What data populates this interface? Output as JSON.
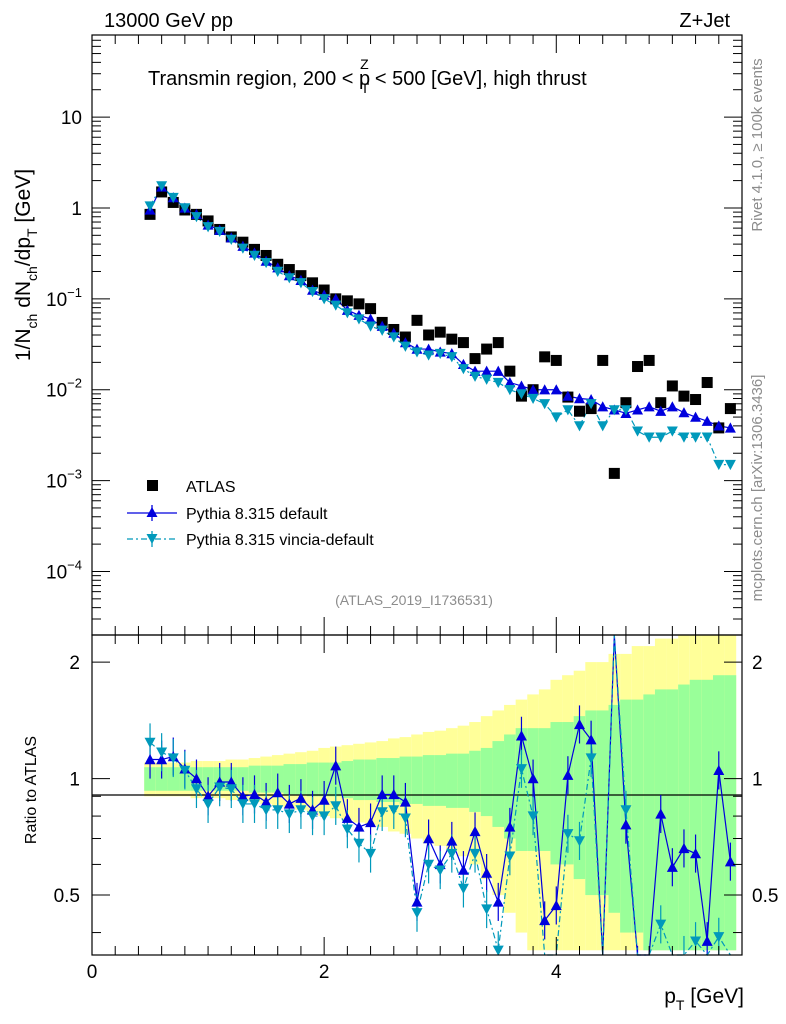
{
  "header": {
    "left": "13000 GeV pp",
    "right": "Z+Jet"
  },
  "side_labels": {
    "rivet": "Rivet 4.1.0, ≥ 100k events",
    "mcplots": "mcplots.cern.ch [arXiv:1306.3436]"
  },
  "analysis_id": "(ATLAS_2019_I1736531)",
  "title": {
    "pre": "Transmin region, 200 < p",
    "sub": "T",
    "sup": "Z",
    "post": " < 500 [GeV], high thrust"
  },
  "ylabel_main": {
    "t1": "1/N",
    "s1": "ch",
    "t2": " dN",
    "s2": "ch",
    "t3": "/dp",
    "s3": "T",
    "t4": " [GeV]"
  },
  "ylabel_ratio": "Ratio to ATLAS",
  "xlabel": {
    "t1": "p",
    "s1": "T",
    "t2": " [GeV]"
  },
  "legend": [
    {
      "label": "ATLAS",
      "color": "#000000",
      "marker": "square"
    },
    {
      "label": "Pythia 8.315 default",
      "color": "#0000dd",
      "marker": "triangle-up"
    },
    {
      "label": "Pythia 8.315 vincia-default",
      "color": "#0099bb",
      "marker": "triangle-down"
    }
  ],
  "x_ticks": [
    "0",
    "2",
    "4"
  ],
  "y_ticks_main": [
    {
      "mant": "10",
      "exp": ""
    },
    {
      "mant": "1",
      "exp": ""
    },
    {
      "mant": "10",
      "exp": "−1"
    },
    {
      "mant": "10",
      "exp": "−2"
    },
    {
      "mant": "10",
      "exp": "−3"
    },
    {
      "mant": "10",
      "exp": "−4"
    }
  ],
  "y_ticks_ratio": [
    "2",
    "1",
    "0.5"
  ],
  "chart_data": {
    "type": "scatter",
    "title": "Transmin region, 200 < pT^Z < 500 [GeV], high thrust",
    "xlabel": "pT [GeV]",
    "ylabel": "1/Nch dNch/dpT [GeV]",
    "xlim": [
      0,
      5.6
    ],
    "ylim_main": [
      2e-05,
      80
    ],
    "ylim_ratio": [
      0.35,
      2.35
    ],
    "x": [
      0.5,
      0.6,
      0.7,
      0.8,
      0.9,
      1.0,
      1.1,
      1.2,
      1.3,
      1.4,
      1.5,
      1.6,
      1.7,
      1.8,
      1.9,
      2.0,
      2.1,
      2.2,
      2.3,
      2.4,
      2.5,
      2.6,
      2.7,
      2.8,
      2.9,
      3.0,
      3.1,
      3.2,
      3.3,
      3.4,
      3.5,
      3.6,
      3.7,
      3.8,
      3.9,
      4.0,
      4.1,
      4.2,
      4.3,
      4.4,
      4.5,
      4.6,
      4.7,
      4.8,
      4.9,
      5.0,
      5.1,
      5.2,
      5.3,
      5.4,
      5.5
    ],
    "series": [
      {
        "name": "ATLAS",
        "values": [
          0.85,
          1.5,
          1.15,
          0.95,
          0.85,
          0.72,
          0.58,
          0.48,
          0.42,
          0.35,
          0.3,
          0.24,
          0.21,
          0.18,
          0.15,
          0.125,
          0.1,
          0.095,
          0.088,
          0.078,
          0.055,
          0.046,
          0.038,
          0.058,
          0.04,
          0.043,
          0.036,
          0.033,
          0.022,
          0.028,
          0.033,
          0.016,
          0.0085,
          0.01,
          0.023,
          0.021,
          0.0083,
          0.0058,
          0.0062,
          0.021,
          0.0012,
          0.0072,
          0.018,
          0.021,
          0.0072,
          0.011,
          0.0085,
          0.0078,
          0.012,
          0.0038,
          0.0062
        ],
        "ratio_band_inner": [
          0.07,
          0.07,
          0.07,
          0.07,
          0.07,
          0.07,
          0.07,
          0.07,
          0.07,
          0.08,
          0.08,
          0.08,
          0.09,
          0.09,
          0.1,
          0.1,
          0.1,
          0.11,
          0.12,
          0.12,
          0.13,
          0.13,
          0.14,
          0.14,
          0.15,
          0.15,
          0.16,
          0.16,
          0.18,
          0.2,
          0.25,
          0.3,
          0.35,
          0.35,
          0.35,
          0.4,
          0.4,
          0.45,
          0.5,
          0.5,
          0.55,
          0.6,
          0.6,
          0.65,
          0.7,
          0.7,
          0.75,
          0.8,
          0.8,
          0.85,
          0.85
        ],
        "ratio_band_outer": [
          0.1,
          0.1,
          0.1,
          0.1,
          0.11,
          0.11,
          0.11,
          0.12,
          0.12,
          0.13,
          0.14,
          0.15,
          0.16,
          0.17,
          0.18,
          0.2,
          0.21,
          0.22,
          0.23,
          0.24,
          0.25,
          0.27,
          0.28,
          0.3,
          0.32,
          0.33,
          0.35,
          0.37,
          0.4,
          0.45,
          0.5,
          0.55,
          0.6,
          0.65,
          0.7,
          0.8,
          0.85,
          0.9,
          1.0,
          1.0,
          1.1,
          1.1,
          1.2,
          1.2,
          1.3,
          1.3,
          1.4,
          1.4,
          1.5,
          1.5,
          1.5
        ]
      },
      {
        "name": "Pythia 8.315 default",
        "values": [
          0.95,
          1.7,
          1.3,
          1.0,
          0.85,
          0.65,
          0.57,
          0.47,
          0.38,
          0.32,
          0.26,
          0.22,
          0.18,
          0.16,
          0.125,
          0.11,
          0.1,
          0.075,
          0.066,
          0.06,
          0.05,
          0.042,
          0.033,
          0.028,
          0.028,
          0.026,
          0.025,
          0.019,
          0.016,
          0.016,
          0.016,
          0.012,
          0.011,
          0.01,
          0.01,
          0.01,
          0.0085,
          0.008,
          0.0078,
          0.0065,
          0.006,
          0.0055,
          0.006,
          0.0065,
          0.0058,
          0.0065,
          0.0056,
          0.005,
          0.0045,
          0.004,
          0.0038
        ],
        "ratio": [
          1.12,
          1.12,
          1.14,
          1.06,
          1.0,
          0.9,
          0.98,
          0.98,
          0.9,
          0.91,
          0.87,
          0.92,
          0.86,
          0.89,
          0.83,
          0.88,
          1.08,
          0.79,
          0.75,
          0.77,
          0.91,
          0.91,
          0.87,
          0.48,
          0.7,
          0.6,
          0.69,
          0.58,
          0.73,
          0.57,
          0.48,
          0.75,
          1.29,
          1.0,
          0.43,
          0.47,
          1.02,
          1.38,
          1.26,
          0.31,
          5.0,
          0.76,
          0.33,
          0.31,
          0.81,
          0.59,
          0.66,
          0.64,
          0.38,
          1.05,
          0.61
        ]
      },
      {
        "name": "Pythia 8.315 vincia-default",
        "values": [
          1.05,
          1.75,
          1.3,
          1.0,
          0.8,
          0.62,
          0.55,
          0.45,
          0.36,
          0.3,
          0.25,
          0.2,
          0.17,
          0.15,
          0.12,
          0.1,
          0.085,
          0.07,
          0.06,
          0.05,
          0.045,
          0.038,
          0.03,
          0.026,
          0.024,
          0.025,
          0.023,
          0.017,
          0.014,
          0.013,
          0.012,
          0.01,
          0.009,
          0.008,
          0.007,
          0.005,
          0.006,
          0.004,
          0.007,
          0.004,
          0.006,
          0.006,
          0.0035,
          0.003,
          0.003,
          0.0035,
          0.003,
          0.003,
          0.003,
          0.0015,
          0.0015
        ],
        "ratio": [
          1.24,
          1.17,
          1.13,
          1.05,
          0.94,
          0.86,
          0.95,
          0.94,
          0.86,
          0.86,
          0.83,
          0.83,
          0.81,
          0.83,
          0.8,
          0.8,
          0.85,
          0.74,
          0.68,
          0.64,
          0.82,
          0.83,
          0.79,
          0.45,
          0.6,
          0.58,
          0.64,
          0.52,
          0.64,
          0.46,
          0.36,
          0.63,
          1.06,
          0.8,
          0.3,
          0.24,
          0.72,
          0.69,
          1.13,
          0.19,
          5.0,
          0.83,
          0.19,
          0.14,
          0.42,
          0.32,
          0.35,
          0.38,
          0.25,
          0.39,
          0.24
        ]
      }
    ]
  }
}
